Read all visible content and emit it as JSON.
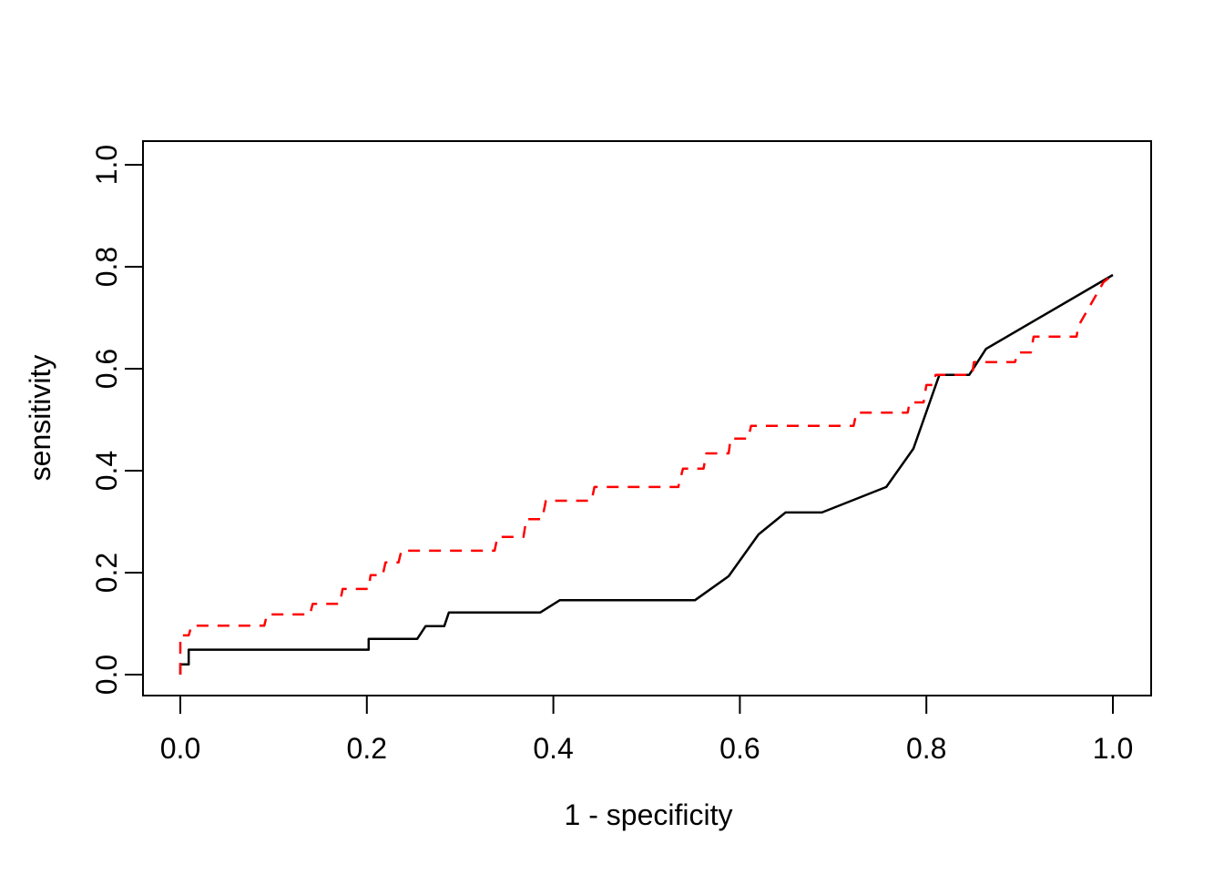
{
  "figure": {
    "background": "#ffffff",
    "border_color": "#000000"
  },
  "chart_data": {
    "type": "line",
    "description": "ROC curves: sensitivity vs 1 - specificity, black solid curve and red dashed curve, both ending at (1.0, 0.78)",
    "title": "",
    "xlabel": "1 - specificity",
    "ylabel": "sensitivity",
    "xlim": [
      0.0,
      1.0
    ],
    "ylim": [
      0.0,
      1.0
    ],
    "grid": false,
    "legend": null,
    "x_ticks": [
      0.0,
      0.2,
      0.4,
      0.6,
      0.8,
      1.0
    ],
    "y_ticks": [
      0.0,
      0.2,
      0.4,
      0.6,
      0.8,
      1.0
    ],
    "x_tick_labels": [
      "0.0",
      "0.2",
      "0.4",
      "0.6",
      "0.8",
      "1.0"
    ],
    "y_tick_labels": [
      "0.0",
      "0.2",
      "0.4",
      "0.6",
      "0.8",
      "1.0"
    ],
    "series": [
      {
        "name": "roc-curve-black",
        "color": "#000000",
        "style": "solid",
        "points": [
          [
            0.0,
            0.0
          ],
          [
            0.0,
            0.02
          ],
          [
            0.009,
            0.02
          ],
          [
            0.009,
            0.049
          ],
          [
            0.202,
            0.049
          ],
          [
            0.202,
            0.07
          ],
          [
            0.254,
            0.07
          ],
          [
            0.263,
            0.095
          ],
          [
            0.283,
            0.095
          ],
          [
            0.288,
            0.122
          ],
          [
            0.386,
            0.122
          ],
          [
            0.407,
            0.146
          ],
          [
            0.552,
            0.146
          ],
          [
            0.588,
            0.193
          ],
          [
            0.62,
            0.275
          ],
          [
            0.649,
            0.318
          ],
          [
            0.688,
            0.318
          ],
          [
            0.757,
            0.368
          ],
          [
            0.786,
            0.443
          ],
          [
            0.814,
            0.588
          ],
          [
            0.846,
            0.588
          ],
          [
            0.864,
            0.639
          ],
          [
            1.0,
            0.784
          ]
        ]
      },
      {
        "name": "roc-curve-red",
        "color": "#ff0000",
        "style": "dashed",
        "points": [
          [
            0.0,
            0.0
          ],
          [
            0.0,
            0.077
          ],
          [
            0.009,
            0.077
          ],
          [
            0.012,
            0.096
          ],
          [
            0.09,
            0.096
          ],
          [
            0.093,
            0.118
          ],
          [
            0.139,
            0.118
          ],
          [
            0.142,
            0.139
          ],
          [
            0.171,
            0.139
          ],
          [
            0.174,
            0.168
          ],
          [
            0.202,
            0.168
          ],
          [
            0.204,
            0.195
          ],
          [
            0.217,
            0.195
          ],
          [
            0.22,
            0.22
          ],
          [
            0.234,
            0.22
          ],
          [
            0.237,
            0.243
          ],
          [
            0.337,
            0.243
          ],
          [
            0.34,
            0.27
          ],
          [
            0.368,
            0.27
          ],
          [
            0.371,
            0.305
          ],
          [
            0.388,
            0.305
          ],
          [
            0.392,
            0.341
          ],
          [
            0.441,
            0.341
          ],
          [
            0.444,
            0.368
          ],
          [
            0.534,
            0.368
          ],
          [
            0.539,
            0.404
          ],
          [
            0.561,
            0.404
          ],
          [
            0.564,
            0.434
          ],
          [
            0.588,
            0.434
          ],
          [
            0.59,
            0.463
          ],
          [
            0.609,
            0.463
          ],
          [
            0.612,
            0.488
          ],
          [
            0.722,
            0.488
          ],
          [
            0.725,
            0.514
          ],
          [
            0.78,
            0.514
          ],
          [
            0.782,
            0.534
          ],
          [
            0.797,
            0.534
          ],
          [
            0.8,
            0.568
          ],
          [
            0.807,
            0.568
          ],
          [
            0.81,
            0.588
          ],
          [
            0.849,
            0.588
          ],
          [
            0.851,
            0.613
          ],
          [
            0.895,
            0.613
          ],
          [
            0.898,
            0.632
          ],
          [
            0.912,
            0.632
          ],
          [
            0.915,
            0.663
          ],
          [
            0.961,
            0.663
          ],
          [
            0.963,
            0.684
          ],
          [
            0.99,
            0.77
          ],
          [
            1.0,
            0.784
          ]
        ]
      }
    ]
  }
}
